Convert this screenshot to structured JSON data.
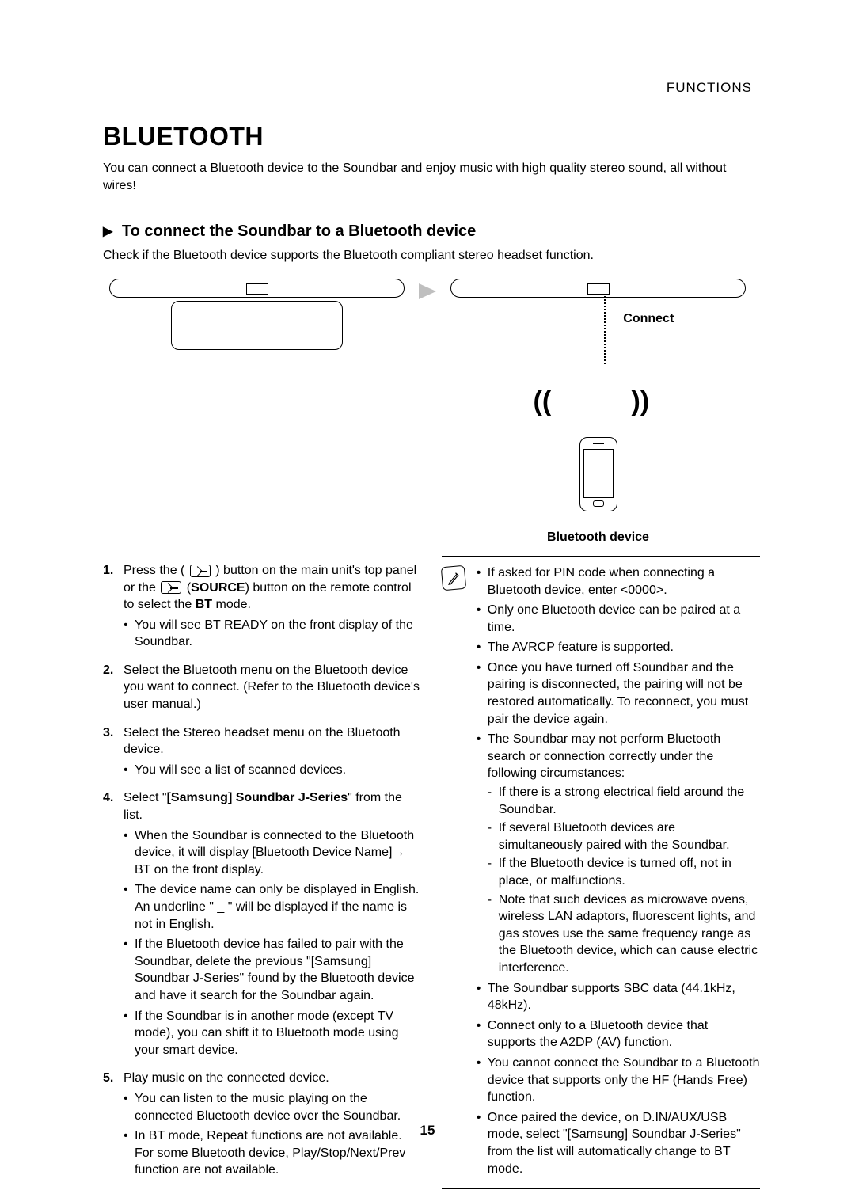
{
  "header": {
    "section_label": "FUNCTIONS"
  },
  "title": "BLUETOOTH",
  "intro": "You can connect a Bluetooth device to the Soundbar and enjoy music with high quality stereo sound, all without wires!",
  "subhead": {
    "marker": "▶",
    "text": "To connect the Soundbar to a Bluetooth device"
  },
  "check_text": "Check if the Bluetooth device supports the Bluetooth compliant stereo headset function.",
  "diagram": {
    "connect_label": "Connect",
    "bt_device_caption": "Bluetooth device",
    "wave_left": "((",
    "wave_right": "))"
  },
  "steps": [
    {
      "num": "1.",
      "pre": "Press the (",
      "mid": ") button on the main unit's top panel or the ",
      "source_label": "SOURCE",
      "post_a": ") button on the remote control to select the ",
      "bt": "BT",
      "post_b": " mode.",
      "sub": [
        "You will see BT READY on the front display of the Soundbar."
      ]
    },
    {
      "num": "2.",
      "text": "Select the Bluetooth menu on the Bluetooth device you want to connect. (Refer to the Bluetooth device's user manual.)"
    },
    {
      "num": "3.",
      "text": "Select the Stereo headset menu on the Bluetooth device.",
      "sub": [
        "You will see a list of scanned devices."
      ]
    },
    {
      "num": "4.",
      "pre": "Select \"",
      "bold": "[Samsung] Soundbar J-Series",
      "post": "\" from the list.",
      "sub": [
        "When the Soundbar is connected to the Bluetooth device, it will display [Bluetooth Device Name]→ BT on the front display.",
        "The device name can only be displayed in English. An underline \" _ \" will be displayed if the name is not in English.",
        "If the Bluetooth device has failed to pair with the Soundbar, delete the previous \"[Samsung] Soundbar J-Series\" found by the Bluetooth device and have it search for the Soundbar again.",
        "If the Soundbar is in another mode (except TV mode), you can shift it to Bluetooth mode using your smart device."
      ]
    },
    {
      "num": "5.",
      "text": "Play music on the connected device.",
      "sub": [
        "You can listen to the music playing on the connected Bluetooth device over the Soundbar.",
        "In BT mode, Repeat functions are not available. For some Bluetooth device, Play/Stop/Next/Prev function are not available."
      ]
    }
  ],
  "notes": {
    "items": [
      {
        "text": "If asked for PIN code when connecting a Bluetooth device, enter <0000>."
      },
      {
        "text": "Only one Bluetooth device can be paired at a time."
      },
      {
        "text": "The AVRCP feature is supported."
      },
      {
        "text": "Once you have turned off Soundbar and the pairing is disconnected, the pairing will not be restored automatically. To reconnect, you must pair the device again."
      },
      {
        "text": "The Soundbar may not perform Bluetooth search or connection correctly under the following circumstances:",
        "dash": [
          "If there is a strong electrical field around the Soundbar.",
          "If several Bluetooth devices are simultaneously paired with the Soundbar.",
          "If the Bluetooth device is turned off, not in place, or malfunctions.",
          "Note that such devices as microwave ovens, wireless LAN adaptors, fluorescent lights, and gas stoves use the same frequency range as the Bluetooth device, which can cause electric interference."
        ]
      },
      {
        "text": "The Soundbar supports SBC data (44.1kHz, 48kHz)."
      },
      {
        "text": "Connect only to a Bluetooth device that supports the A2DP (AV) function."
      },
      {
        "text": "You cannot connect the Soundbar to a Bluetooth device that supports only the HF (Hands Free) function."
      },
      {
        "text": "Once paired the device, on D.IN/AUX/USB mode, select \"[Samsung] Soundbar J-Series\" from the list will automatically change to BT mode."
      }
    ]
  },
  "page_number": "15",
  "colors": {
    "text": "#000000",
    "background": "#ffffff",
    "arrow": "#bfbfbf"
  }
}
